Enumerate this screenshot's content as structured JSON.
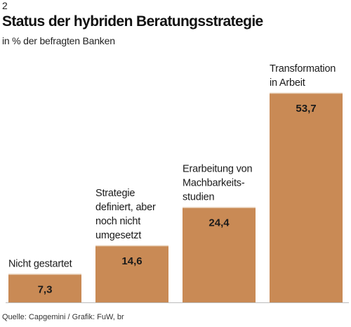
{
  "figure_number": "2",
  "title": "Status der hybriden Beratungsstrategie",
  "subtitle": "in % der befragten Banken",
  "source": "Quelle: Capgemini / Grafik: FuW, br",
  "colors": {
    "bar": "#c98a55",
    "bar_top_edge": "#e9d2bb",
    "baseline": "#bbbbbb"
  },
  "chart_data": {
    "type": "bar",
    "categories": [
      [
        "Nicht gestartet"
      ],
      [
        "Strategie",
        "definiert, aber",
        "noch nicht",
        "umgesetzt"
      ],
      [
        "Erarbeitung von",
        "Machbarkeits-",
        "studien"
      ],
      [
        "Transformation",
        "in Arbeit"
      ]
    ],
    "values": [
      7.3,
      14.6,
      24.4,
      53.7
    ],
    "value_labels": [
      "7,3",
      "14,6",
      "24,4",
      "53,7"
    ],
    "ylim": [
      0,
      60
    ],
    "grid": false,
    "legend": "none"
  }
}
